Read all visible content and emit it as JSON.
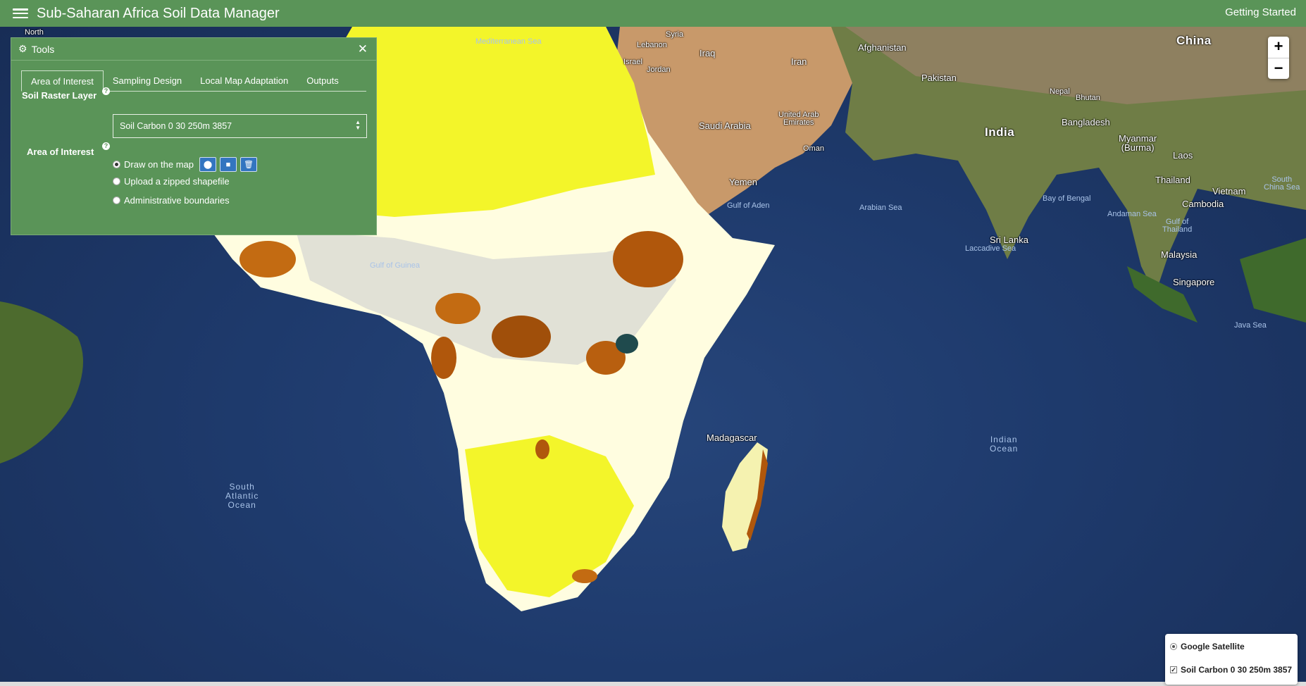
{
  "header": {
    "title": "Sub-Saharan Africa Soil Data Manager",
    "getting_started": "Getting Started"
  },
  "tools": {
    "title": "Tools",
    "tabs": [
      {
        "label": "Area of Interest"
      },
      {
        "label": "Sampling Design"
      },
      {
        "label": "Local Map Adaptation"
      },
      {
        "label": "Outputs"
      }
    ],
    "soil_raster_label": "Soil Raster Layer",
    "soil_raster_value": "Soil Carbon 0 30 250m 3857",
    "aoi_label": "Area of Interest",
    "aoi_options": [
      {
        "label": "Draw on the map",
        "selected": true
      },
      {
        "label": "Upload a zipped shapefile",
        "selected": false
      },
      {
        "label": "Administrative boundaries",
        "selected": false
      }
    ]
  },
  "map": {
    "labels": {
      "china": "China",
      "afghanistan": "Afghanistan",
      "iran": "Iran",
      "iraq": "Iraq",
      "syria": "Syria",
      "lebanon": "Lebanon",
      "israel": "Israel",
      "jordan": "Jordan",
      "mediterranean": "Mediterranean Sea",
      "pakistan": "Pakistan",
      "nepal": "Nepal",
      "bhutan": "Bhutan",
      "india": "India",
      "bangladesh": "Bangladesh",
      "myanmar": "Myanmar\n(Burma)",
      "laos": "Laos",
      "thailand": "Thailand",
      "vietnam": "Vietnam",
      "cambodia": "Cambodia",
      "malaysia": "Malaysia",
      "singapore": "Singapore",
      "saudi": "Saudi Arabia",
      "uae": "United Arab\nEmirates",
      "oman": "Oman",
      "yemen": "Yemen",
      "gulf_aden": "Gulf of Aden",
      "arabian_sea": "Arabian Sea",
      "bay_bengal": "Bay of Bengal",
      "sri_lanka": "Sri Lanka",
      "laccadive": "Laccadive Sea",
      "andaman": "Andaman Sea",
      "gulf_thailand": "Gulf of\nThailand",
      "south_china_sea": "South\nChina Sea",
      "java_sea": "Java Sea",
      "gulf_guinea": "Gulf of Guinea",
      "indian_ocean": "Indian\nOcean",
      "south_atlantic": "South\nAtlantic\nOcean",
      "madagascar": "Madagascar",
      "north": "North"
    }
  },
  "zoom": {
    "in": "+",
    "out": "−"
  },
  "layers": {
    "base": "Google Satellite",
    "overlay": "Soil Carbon 0 30 250m 3857"
  },
  "colors": {
    "header": "#5a9458",
    "panel": "#5a9458",
    "button": "#3375c0"
  }
}
